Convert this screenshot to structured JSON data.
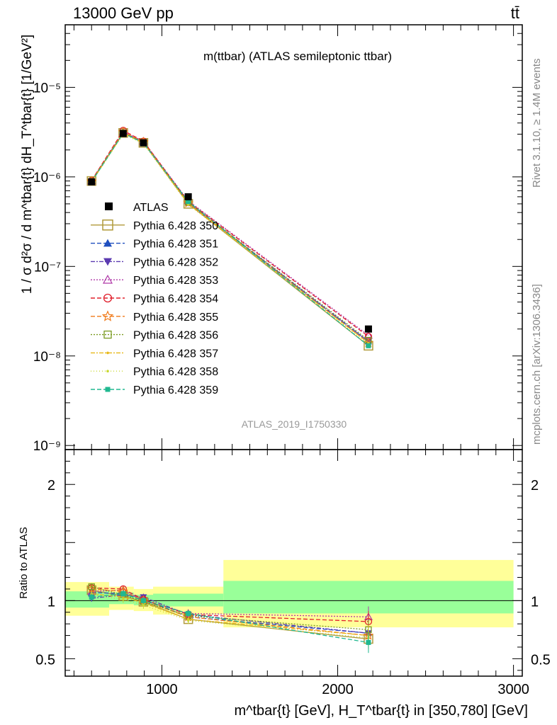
{
  "header": {
    "left": "13000 GeV pp",
    "right": "tt̄"
  },
  "plot": {
    "title": "m(ttbar) (ATLAS semileptonic ttbar)",
    "analysis_id": "ATLAS_2019_I1750330",
    "side_label_top": "Rivet 3.1.10, ≥ 1.4M events",
    "side_label_bottom": "mcplots.cern.ch [arXiv:1306.3436]",
    "ylabel": "1 / σ d²σ / d m^tbar{t} dH_T^tbar{t} [1/GeV²]",
    "ratio_ylabel": "Ratio to ATLAS",
    "xlabel": "m^tbar{t} [GeV], H_T^tbar{t} in [350,780] [GeV]"
  },
  "chart_data": {
    "type": "scatter",
    "x_range": [
      450,
      3050
    ],
    "main": {
      "yscale": "log",
      "ylim": [
        9e-10,
        5e-05
      ],
      "y_ticks": [
        "10⁻⁹",
        "10⁻⁸",
        "10⁻⁷",
        "10⁻⁶",
        "10⁻⁵"
      ],
      "y_tick_values": [
        1e-09,
        1e-08,
        1e-07,
        1e-06,
        1e-05
      ]
    },
    "ratio": {
      "ylim": [
        0.35,
        2.3
      ],
      "y_ticks": [
        "0.5",
        "1",
        "2"
      ],
      "y_tick_values": [
        0.5,
        1,
        2
      ],
      "bins": [
        [
          450,
          700
        ],
        [
          700,
          840
        ],
        [
          840,
          950
        ],
        [
          950,
          1350
        ],
        [
          1350,
          3000
        ]
      ],
      "band_inner": [
        [
          0.94,
          1.08
        ],
        [
          0.97,
          1.07
        ],
        [
          0.96,
          1.05
        ],
        [
          0.95,
          1.06
        ],
        [
          0.89,
          1.17
        ]
      ],
      "band_outer": [
        [
          0.87,
          1.16
        ],
        [
          0.92,
          1.12
        ],
        [
          0.91,
          1.1
        ],
        [
          0.88,
          1.12
        ],
        [
          0.77,
          1.35
        ]
      ]
    },
    "x_ticks": [
      "1000",
      "2000",
      "3000"
    ],
    "x_tick_values": [
      1000,
      2000,
      3000
    ],
    "legend_position": "center-left",
    "data": {
      "name": "ATLAS",
      "x": [
        600,
        780,
        895,
        1150,
        2175
      ],
      "y": [
        8.8e-07,
        3.05e-06,
        2.4e-06,
        6e-07,
        2e-08
      ]
    },
    "series": [
      {
        "name": "Pythia 6.428 350",
        "color": "#b09a3a",
        "marker": "square-open",
        "dash": "",
        "x": [
          600,
          780,
          895,
          1150,
          2175
        ],
        "y": [
          9e-07,
          3.1e-06,
          2.4e-06,
          5e-07,
          1.3e-08
        ],
        "ratio": [
          1.09,
          1.04,
          0.99,
          0.84,
          0.67
        ]
      },
      {
        "name": "Pythia 6.428 351",
        "color": "#1f4fbf",
        "marker": "triangle-up",
        "dash": "6,3",
        "x": [
          600,
          780,
          895,
          1150,
          2175
        ],
        "y": [
          8.9e-07,
          3.15e-06,
          2.45e-06,
          5.2e-07,
          1.45e-08
        ],
        "ratio": [
          1.07,
          1.06,
          1.01,
          0.86,
          0.72
        ]
      },
      {
        "name": "Pythia 6.428 352",
        "color": "#5b3ab0",
        "marker": "triangle-down",
        "dash": "6,2,2,2",
        "x": [
          600,
          780,
          895,
          1150,
          2175
        ],
        "y": [
          8.8e-07,
          3.12e-06,
          2.42e-06,
          5.1e-07,
          1.45e-08
        ],
        "ratio": [
          1.02,
          1.05,
          1.03,
          0.88,
          0.72
        ]
      },
      {
        "name": "Pythia 6.428 353",
        "color": "#b03aa8",
        "marker": "triangle-open",
        "dash": "2,2",
        "x": [
          600,
          780,
          895,
          1150,
          2175
        ],
        "y": [
          9e-07,
          3.2e-06,
          2.5e-06,
          5.4e-07,
          1.7e-08
        ],
        "ratio": [
          1.08,
          1.09,
          1.0,
          0.89,
          0.86
        ]
      },
      {
        "name": "Pythia 6.428 354",
        "color": "#e0202c",
        "marker": "circle-open",
        "dash": "6,3",
        "x": [
          600,
          780,
          895,
          1150,
          2175
        ],
        "y": [
          9.1e-07,
          3.3e-06,
          2.5e-06,
          5.3e-07,
          1.65e-08
        ],
        "ratio": [
          1.11,
          1.1,
          1.01,
          0.88,
          0.82
        ]
      },
      {
        "name": "Pythia 6.428 355",
        "color": "#f07a1a",
        "marker": "star-open",
        "dash": "6,3",
        "x": [
          600,
          780,
          895,
          1150,
          2175
        ],
        "y": [
          8.9e-07,
          3.18e-06,
          2.45e-06,
          5.1e-07,
          1.4e-08
        ],
        "ratio": [
          1.1,
          1.08,
          1.0,
          0.86,
          0.7
        ]
      },
      {
        "name": "Pythia 6.428 356",
        "color": "#7a9a20",
        "marker": "square-open-small",
        "dash": "2,2",
        "x": [
          600,
          780,
          895,
          1150,
          2175
        ],
        "y": [
          8.9e-07,
          3.1e-06,
          2.42e-06,
          5.2e-07,
          1.5e-08
        ],
        "ratio": [
          1.12,
          1.05,
          0.99,
          0.87,
          0.75
        ]
      },
      {
        "name": "Pythia 6.428 357",
        "color": "#e8b818",
        "marker": "dot",
        "dash": "6,2,2,2",
        "x": [
          600,
          780,
          895,
          1150,
          2175
        ],
        "y": [
          8.8e-07,
          3.05e-06,
          2.4e-06,
          5e-07,
          1.4e-08
        ],
        "ratio": [
          1.06,
          1.03,
          0.98,
          0.84,
          0.7
        ]
      },
      {
        "name": "Pythia 6.428 358",
        "color": "#c8d830",
        "marker": "dot",
        "dash": "1,3",
        "x": [
          600,
          780,
          895,
          1150,
          2175
        ],
        "y": [
          8.7e-07,
          3e-06,
          2.35e-06,
          4.9e-07,
          1.35e-08
        ],
        "ratio": [
          1.05,
          1.01,
          0.96,
          0.83,
          0.68
        ]
      },
      {
        "name": "Pythia 6.428 359",
        "color": "#20b890",
        "marker": "square-filled",
        "dash": "6,3",
        "x": [
          600,
          780,
          895,
          1150,
          2175
        ],
        "y": [
          8.8e-07,
          3.08e-06,
          2.4e-06,
          5.3e-07,
          1.3e-08
        ],
        "ratio": [
          1.03,
          1.06,
          1.0,
          0.89,
          0.64
        ]
      }
    ]
  }
}
